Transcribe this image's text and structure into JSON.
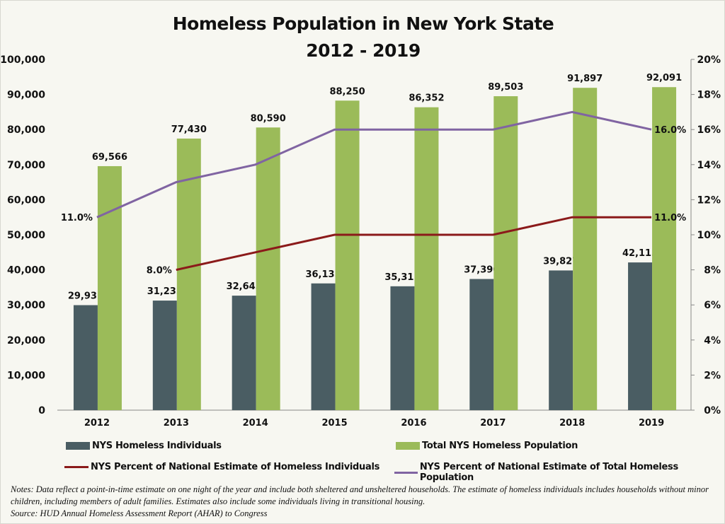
{
  "chart_data": {
    "type": "bar",
    "title": "Homeless Population in New York State",
    "subtitle": "2012 - 2019",
    "categories": [
      "2012",
      "2013",
      "2014",
      "2015",
      "2016",
      "2017",
      "2018",
      "2019"
    ],
    "ylim": [
      0,
      100000
    ],
    "y2lim": [
      0,
      20
    ],
    "yticks": [
      "0",
      "10,000",
      "20,000",
      "30,000",
      "40,000",
      "50,000",
      "60,000",
      "70,000",
      "80,000",
      "90,000",
      "100,000"
    ],
    "y2ticks": [
      "0%",
      "2%",
      "4%",
      "6%",
      "8%",
      "10%",
      "12%",
      "14%",
      "16%",
      "18%",
      "20%"
    ],
    "series": [
      {
        "name": "NYS Homeless Individuals",
        "type": "bar",
        "axis": "left",
        "color": "#4a5d63",
        "values": [
          29935,
          31235,
          32643,
          36135,
          35315,
          37390,
          39827,
          42113
        ],
        "labels": [
          "29,935",
          "31,235",
          "32,643",
          "36,135",
          "35,315",
          "37,390",
          "39,827",
          "42,113"
        ]
      },
      {
        "name": "Total NYS Homeless Population",
        "type": "bar",
        "axis": "left",
        "color": "#9bbb59",
        "values": [
          69566,
          77430,
          80590,
          88250,
          86352,
          89503,
          91897,
          92091
        ],
        "labels": [
          "69,566",
          "77,430",
          "80,590",
          "88,250",
          "86,352",
          "89,503",
          "91,897",
          "92,091"
        ]
      },
      {
        "name": "NYS Percent of National Estimate of Homeless Individuals",
        "type": "line",
        "axis": "right",
        "color": "#8b1a1a",
        "values": [
          null,
          8,
          9,
          10,
          10,
          10,
          11,
          11
        ],
        "labels": {
          "first": "8.0%",
          "last": "11.0%"
        }
      },
      {
        "name": "NYS Percent of National Estimate of Total Homeless Population",
        "type": "line",
        "axis": "right",
        "color": "#8064a2",
        "values": [
          11,
          13,
          14,
          16,
          16,
          16,
          17,
          16
        ],
        "labels": {
          "first": "11.0%",
          "last": "16.0%"
        }
      }
    ],
    "legend": "bottom",
    "grid": false
  },
  "notes": {
    "line1": "Notes: Data reflect a point-in-time estimate on one night of the year and include both sheltered and unsheltered households. The estimate of homeless individuals includes households without minor children, including members of adult families. Estimates also include some individuals living in transitional housing.",
    "source": "Source: HUD Annual Homeless Assessment Report (AHAR) to Congress"
  }
}
